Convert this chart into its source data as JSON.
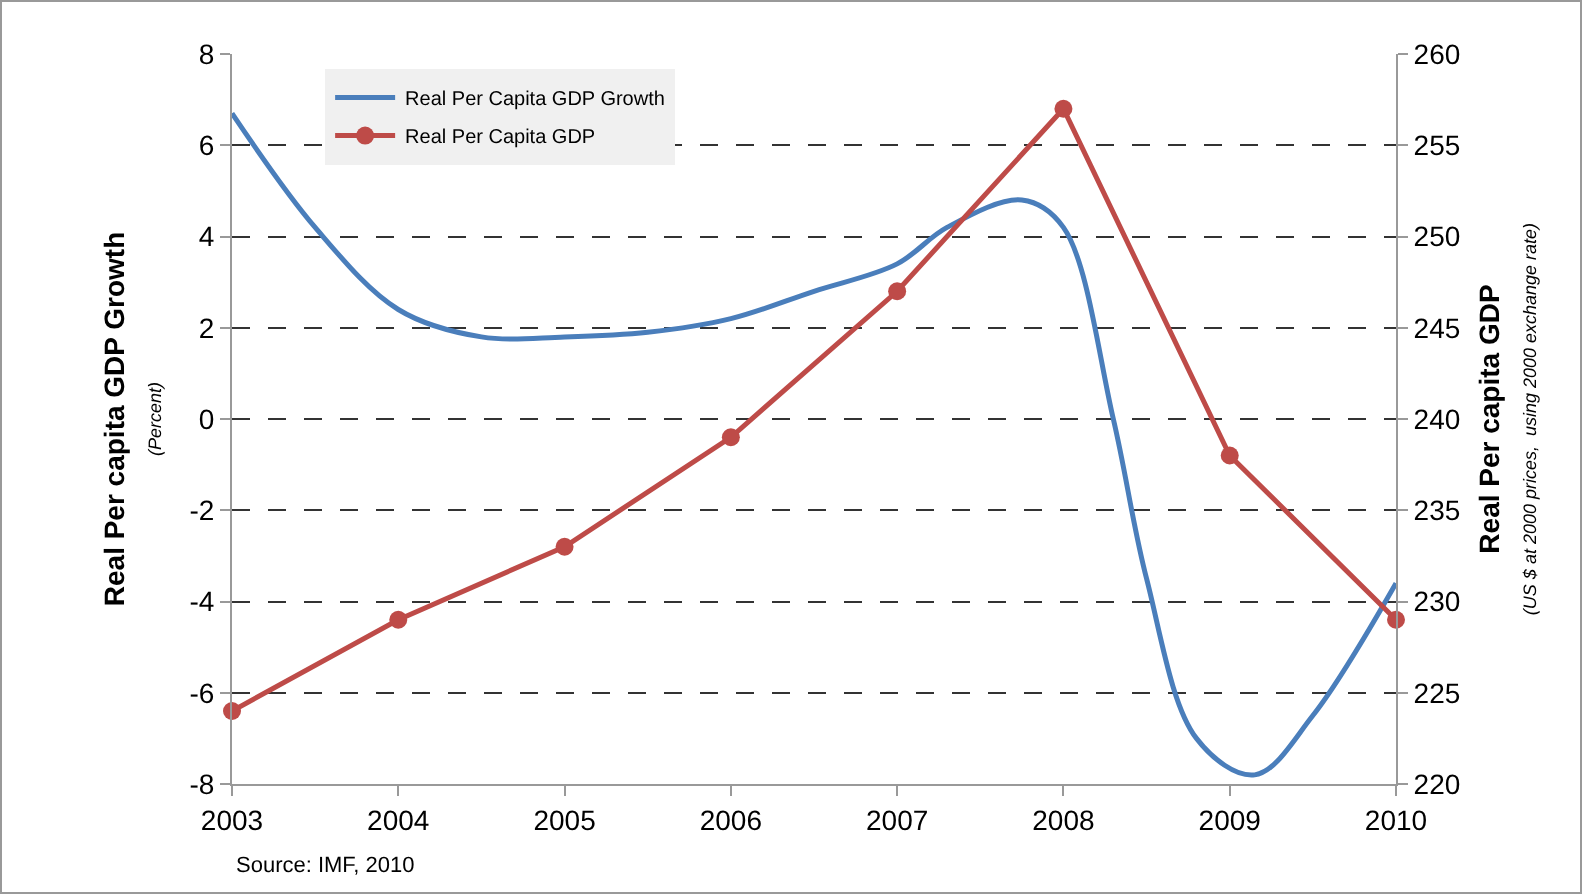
{
  "chart_data": {
    "type": "line",
    "ylabel": "Real Per capita GDP Growth\n(Percent)",
    "y2label": "Real Per capita GDP\n(US $ at 2000 prices,  using 2000 exchange rate)",
    "xlim": [
      2003,
      2010
    ],
    "xticks": [
      2003,
      2004,
      2005,
      2006,
      2007,
      2008,
      2009,
      2010
    ],
    "ylim": [
      -8,
      8
    ],
    "yticks": [
      -8,
      -6,
      -4,
      -2,
      0,
      2,
      4,
      6,
      8
    ],
    "y2lim": [
      220,
      260
    ],
    "y2ticks": [
      220,
      225,
      230,
      235,
      240,
      245,
      250,
      255,
      260
    ],
    "grid": "y",
    "legend": "top left",
    "annotations": [
      "Source: IMF, 2010"
    ],
    "series": [
      {
        "name": "Real Per Capita GDP Growth",
        "color": "#4a7ebb",
        "marker": "none",
        "x": [
          2003,
          2003.5,
          2004,
          2004.5,
          2005,
          2005.5,
          2006,
          2006.5,
          2007,
          2007.3,
          2007.75,
          2008,
          2008.3,
          2008.5,
          2008.8,
          2009.15,
          2009.5,
          2010
        ],
        "values": [
          6.7,
          4.2,
          2.4,
          1.8,
          1.8,
          1.9,
          2.2,
          2.8,
          3.4,
          4.2,
          4.8,
          4.2,
          0,
          -3.5,
          -7.0,
          -7.8,
          -6.5,
          -3.6
        ]
      },
      {
        "name": "Real Per Capita GDP",
        "color": "#be4b48",
        "marker": "circle",
        "axis": "y2",
        "x": [
          2003,
          2004,
          2005,
          2006,
          2007,
          2008,
          2009,
          2010
        ],
        "values": [
          224,
          229,
          233,
          239,
          247,
          257,
          238,
          229
        ]
      }
    ]
  }
}
